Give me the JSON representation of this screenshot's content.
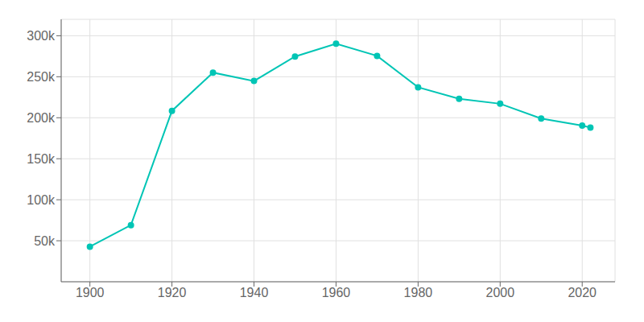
{
  "chart_data": {
    "type": "line",
    "x": [
      1900,
      1910,
      1920,
      1930,
      1940,
      1950,
      1960,
      1970,
      1980,
      1990,
      2000,
      2010,
      2020,
      2022
    ],
    "values": [
      42728,
      69067,
      208435,
      255040,
      244791,
      274605,
      290351,
      275425,
      237177,
      223019,
      217074,
      199110,
      190469,
      188085
    ],
    "color": "#00C5B5",
    "marker": "circle",
    "xlim": [
      1893,
      2028
    ],
    "xticks": [
      1900,
      1920,
      1940,
      1960,
      1980,
      2000,
      2020
    ],
    "ylim": [
      0,
      320000
    ],
    "yticks": [
      {
        "value": 50000,
        "label": "50k"
      },
      {
        "value": 100000,
        "label": "100k"
      },
      {
        "value": 150000,
        "label": "150k"
      },
      {
        "value": 200000,
        "label": "200k"
      },
      {
        "value": 250000,
        "label": "250k"
      },
      {
        "value": 300000,
        "label": "300k"
      }
    ],
    "grid": true
  }
}
